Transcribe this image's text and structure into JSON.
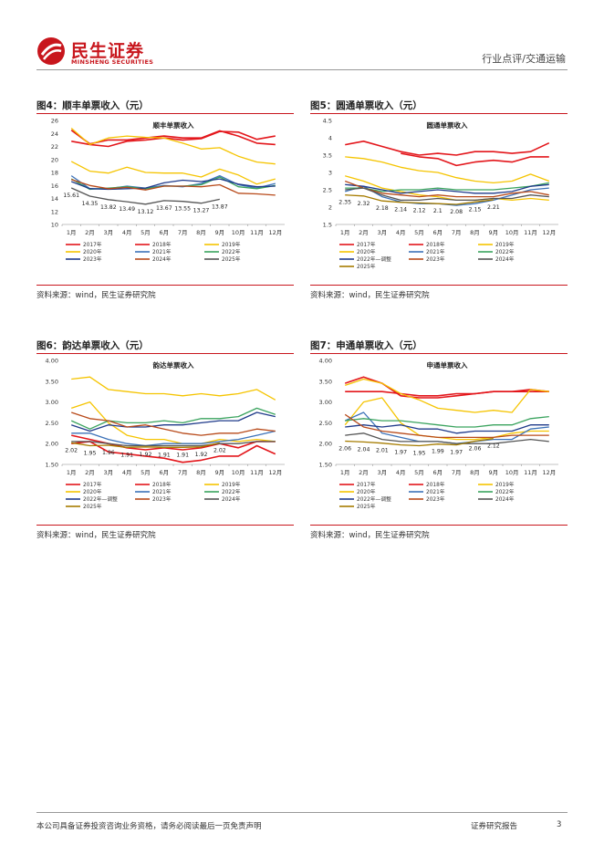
{
  "header": {
    "logo_cn": "民生证券",
    "logo_en": "MINSHENG SECURITIES",
    "category": "行业点评/交通运输"
  },
  "figures": [
    {
      "title": "图4：顺丰单票收入（元）",
      "source": "资料来源：wind，民生证券研究院",
      "chart_data": {
        "type": "line",
        "title": "顺丰单票收入",
        "categories": [
          "1月",
          "2月",
          "3月",
          "4月",
          "5月",
          "6月",
          "7月",
          "8月",
          "9月",
          "10月",
          "11月",
          "12月"
        ],
        "ylim": [
          10,
          26
        ],
        "yticks": [
          10,
          12,
          14,
          16,
          18,
          20,
          22,
          24,
          26
        ],
        "ytick_labels": [
          "10",
          "12",
          "14",
          "16",
          "18",
          "20",
          "22",
          "24",
          "26"
        ],
        "series": [
          {
            "name": "2017年",
            "color": "#e3161b",
            "values": [
              22.8,
              22.3,
              22.0,
              22.8,
              23.0,
              23.3,
              23.0,
              23.2,
              24.3,
              24.2,
              23.1,
              23.6
            ]
          },
          {
            "name": "2018年",
            "color": "#e3161b",
            "values": [
              24.5,
              22.4,
              23.0,
              23.0,
              23.3,
              23.6,
              23.3,
              23.3,
              24.4,
              23.6,
              22.5,
              22.3
            ]
          },
          {
            "name": "2019年",
            "color": "#f5c400",
            "values": [
              24.8,
              22.3,
              23.3,
              23.6,
              23.4,
              23.3,
              22.5,
              21.6,
              21.8,
              20.5,
              19.6,
              19.3
            ]
          },
          {
            "name": "2020年",
            "color": "#f5c400",
            "values": [
              19.7,
              18.2,
              17.9,
              18.8,
              18.0,
              17.9,
              17.9,
              17.3,
              18.5,
              17.6,
              16.2,
              17.0
            ]
          },
          {
            "name": "2021年",
            "color": "#3c72b8",
            "values": [
              17.5,
              15.5,
              15.5,
              15.9,
              15.6,
              16.0,
              15.8,
              16.3,
              17.5,
              16.1,
              15.6,
              16.3
            ]
          },
          {
            "name": "2022年",
            "color": "#3aa35e",
            "values": [
              17.0,
              15.4,
              15.6,
              15.8,
              15.5,
              15.9,
              15.9,
              16.1,
              17.3,
              15.8,
              15.5,
              16.0
            ]
          },
          {
            "name": "2023年",
            "color": "#1f3a8a",
            "values": [
              16.6,
              15.5,
              15.4,
              15.5,
              15.6,
              16.4,
              16.8,
              16.6,
              17.0,
              16.2,
              15.8,
              15.9
            ]
          },
          {
            "name": "2024年",
            "color": "#b84a1a",
            "values": [
              16.9,
              16.0,
              15.5,
              15.7,
              15.3,
              15.9,
              15.9,
              15.8,
              16.1,
              14.8,
              14.7,
              14.5
            ]
          },
          {
            "name": "2025年",
            "color": "#555555",
            "values": [
              15.61,
              14.35,
              13.82,
              13.49,
              13.12,
              13.67,
              13.55,
              13.27,
              13.87,
              null,
              null,
              null
            ]
          }
        ],
        "annotations": [
          "15.61",
          "14.35",
          "13.82",
          "13.49",
          "13.12",
          "13.67",
          "13.55",
          "13.27",
          "13.87"
        ],
        "legend_columns": 3
      }
    },
    {
      "title": "图5：圆通单票收入（元）",
      "source": "资料来源：wind，民生证券研究院",
      "chart_data": {
        "type": "line",
        "title": "圆通单票收入",
        "categories": [
          "1月",
          "2月",
          "3月",
          "4月",
          "5月",
          "6月",
          "7月",
          "8月",
          "9月",
          "10月",
          "11月",
          "12月"
        ],
        "ylim": [
          1.5,
          4.5
        ],
        "yticks": [
          1.5,
          2,
          2.5,
          3,
          3.5,
          4,
          4.5
        ],
        "ytick_labels": [
          "1.5",
          "2",
          "2.5",
          "3",
          "3.5",
          "4",
          "4.5"
        ],
        "series": [
          {
            "name": "2017年",
            "color": "#e3161b",
            "values": [
              3.8,
              3.9,
              3.75,
              3.6,
              3.5,
              3.55,
              3.5,
              3.6,
              3.6,
              3.55,
              3.6,
              3.85
            ]
          },
          {
            "name": "2018年",
            "color": "#e3161b",
            "values": [
              null,
              null,
              null,
              3.55,
              3.45,
              3.4,
              3.2,
              3.3,
              3.35,
              3.3,
              3.45,
              3.45
            ]
          },
          {
            "name": "2019年",
            "color": "#f5c400",
            "values": [
              3.45,
              3.4,
              3.3,
              3.15,
              3.05,
              3.0,
              2.85,
              2.75,
              2.7,
              2.75,
              2.95,
              2.75
            ]
          },
          {
            "name": "2020年",
            "color": "#f5c400",
            "values": [
              2.9,
              2.75,
              2.55,
              2.45,
              2.35,
              2.3,
              2.2,
              2.2,
              2.25,
              2.2,
              2.25,
              2.2
            ]
          },
          {
            "name": "2021年",
            "color": "#3c72b8",
            "values": [
              2.45,
              2.6,
              2.3,
              2.15,
              2.1,
              2.1,
              2.05,
              2.1,
              2.2,
              2.35,
              2.5,
              2.55
            ]
          },
          {
            "name": "2022年",
            "color": "#3aa35e",
            "values": [
              2.55,
              2.55,
              2.45,
              2.5,
              2.5,
              2.55,
              2.5,
              2.5,
              2.5,
              2.55,
              2.6,
              2.7
            ]
          },
          {
            "name": "2022年—调整",
            "color": "#1f3a8a",
            "values": [
              2.65,
              2.6,
              2.5,
              2.4,
              2.45,
              2.5,
              2.45,
              2.4,
              2.4,
              2.45,
              2.6,
              2.65
            ]
          },
          {
            "name": "2023年",
            "color": "#b84a1a",
            "values": [
              2.75,
              2.55,
              2.4,
              2.35,
              2.3,
              2.35,
              2.3,
              2.3,
              2.3,
              2.4,
              2.45,
              2.35
            ]
          },
          {
            "name": "2024年",
            "color": "#555555",
            "values": [
              2.5,
              2.55,
              2.35,
              2.2,
              2.2,
              2.25,
              2.2,
              2.2,
              2.25,
              2.25,
              2.35,
              2.3
            ]
          },
          {
            "name": "2025年",
            "color": "#a67c00",
            "values": [
              2.35,
              2.32,
              2.18,
              2.14,
              2.12,
              2.1,
              2.08,
              2.15,
              2.21,
              null,
              null,
              null
            ]
          }
        ],
        "annotations": [
          "2.35",
          "2.32",
          "2.18",
          "2.14",
          "2.12",
          "2.1",
          "2.08",
          "2.15",
          "2.21"
        ],
        "legend_columns": 3
      }
    },
    {
      "title": "图6：韵达单票收入（元）",
      "source": "资料来源：wind，民生证券研究院",
      "chart_data": {
        "type": "line",
        "title": "韵达单票收入",
        "categories": [
          "1月",
          "2月",
          "3月",
          "4月",
          "5月",
          "6月",
          "7月",
          "8月",
          "9月",
          "10月",
          "11月",
          "12月"
        ],
        "ylim": [
          1.5,
          4.0
        ],
        "yticks": [
          1.5,
          2.0,
          2.5,
          3.0,
          3.5,
          4.0
        ],
        "ytick_labels": [
          "1.50",
          "2.00",
          "2.50",
          "3.00",
          "3.50",
          "4.00"
        ],
        "series": [
          {
            "name": "2017年",
            "color": "#e3161b",
            "values": [
              2.0,
              2.05,
              1.8,
              1.75,
              1.7,
              1.65,
              1.55,
              1.6,
              1.7,
              1.7,
              1.95,
              1.75
            ]
          },
          {
            "name": "2018年",
            "color": "#e3161b",
            "values": [
              2.2,
              2.1,
              2.0,
              1.9,
              1.85,
              1.9,
              1.85,
              1.9,
              2.0,
              1.9,
              2.05,
              2.05
            ]
          },
          {
            "name": "2019年",
            "color": "#f5c400",
            "values": [
              3.55,
              3.6,
              3.3,
              3.25,
              3.2,
              3.2,
              3.15,
              3.2,
              3.15,
              3.2,
              3.3,
              3.05
            ]
          },
          {
            "name": "2020年",
            "color": "#f5c400",
            "values": [
              2.85,
              3.0,
              2.5,
              2.2,
              2.1,
              2.1,
              2.0,
              2.0,
              2.1,
              2.05,
              2.1,
              2.05
            ]
          },
          {
            "name": "2021年",
            "color": "#3c72b8",
            "values": [
              2.25,
              2.25,
              2.1,
              2.0,
              1.95,
              2.0,
              2.0,
              2.0,
              2.05,
              2.1,
              2.2,
              2.3
            ]
          },
          {
            "name": "2022年",
            "color": "#3aa35e",
            "values": [
              2.55,
              2.35,
              2.55,
              2.5,
              2.5,
              2.55,
              2.5,
              2.6,
              2.6,
              2.65,
              2.85,
              2.7
            ]
          },
          {
            "name": "2022年—调整",
            "color": "#1f3a8a",
            "values": [
              2.45,
              2.3,
              2.45,
              2.4,
              2.4,
              2.45,
              2.45,
              2.5,
              2.55,
              2.55,
              2.75,
              2.65
            ]
          },
          {
            "name": "2023年",
            "color": "#b84a1a",
            "values": [
              2.75,
              2.6,
              2.55,
              2.4,
              2.45,
              2.35,
              2.25,
              2.2,
              2.25,
              2.25,
              2.35,
              2.3
            ]
          },
          {
            "name": "2024年",
            "color": "#555555",
            "values": [
              2.05,
              2.05,
              2.0,
              1.95,
              1.95,
              1.95,
              1.95,
              1.95,
              2.0,
              2.0,
              2.05,
              2.05
            ]
          },
          {
            "name": "2025年",
            "color": "#a67c00",
            "values": [
              2.02,
              1.95,
              1.96,
              1.91,
              1.92,
              1.91,
              1.91,
              1.92,
              2.02,
              null,
              null,
              null
            ]
          }
        ],
        "annotations": [
          "2.02",
          "1.95",
          "1.96",
          "1.91",
          "1.92",
          "1.91",
          "1.91",
          "1.92",
          "2.02"
        ],
        "legend_columns": 3
      }
    },
    {
      "title": "图7：申通单票收入（元）",
      "source": "资料来源：wind，民生证券研究院",
      "chart_data": {
        "type": "line",
        "title": "申通单票收入",
        "categories": [
          "1月",
          "2月",
          "3月",
          "4月",
          "5月",
          "6月",
          "7月",
          "8月",
          "9月",
          "10月",
          "11月",
          "12月"
        ],
        "ylim": [
          1.5,
          4.0
        ],
        "yticks": [
          1.5,
          2.0,
          2.5,
          3.0,
          3.5,
          4.0
        ],
        "ytick_labels": [
          "1.50",
          "2.00",
          "2.50",
          "3.00",
          "3.50",
          "4.00"
        ],
        "series": [
          {
            "name": "2017年",
            "color": "#e3161b",
            "values": [
              3.45,
              3.6,
              3.45,
              3.15,
              3.1,
              3.1,
              3.15,
              3.2,
              3.25,
              3.25,
              3.3,
              3.25
            ]
          },
          {
            "name": "2018年",
            "color": "#e3161b",
            "values": [
              3.25,
              3.25,
              3.25,
              3.2,
              3.15,
              3.15,
              3.2,
              3.2,
              3.25,
              3.25,
              3.25,
              3.25
            ]
          },
          {
            "name": "2019年",
            "color": "#f5c400",
            "values": [
              3.4,
              3.55,
              3.45,
              3.2,
              3.05,
              2.85,
              2.8,
              2.75,
              2.8,
              2.75,
              3.3,
              3.25
            ]
          },
          {
            "name": "2020年",
            "color": "#f5c400",
            "values": [
              2.45,
              3.0,
              3.1,
              2.5,
              2.2,
              2.15,
              2.1,
              2.1,
              2.15,
              2.25,
              2.3,
              2.3
            ]
          },
          {
            "name": "2021年",
            "color": "#3c72b8",
            "values": [
              2.55,
              2.75,
              2.25,
              2.15,
              2.05,
              2.05,
              2.0,
              2.05,
              2.1,
              2.1,
              2.35,
              2.4
            ]
          },
          {
            "name": "2022年",
            "color": "#3aa35e",
            "values": [
              2.55,
              2.6,
              2.55,
              2.55,
              2.5,
              2.45,
              2.4,
              2.4,
              2.45,
              2.45,
              2.6,
              2.65
            ]
          },
          {
            "name": "2022年—调整",
            "color": "#1f3a8a",
            "values": [
              2.4,
              2.45,
              2.4,
              2.45,
              2.35,
              2.35,
              2.25,
              2.3,
              2.3,
              2.3,
              2.45,
              2.45
            ]
          },
          {
            "name": "2023年",
            "color": "#b84a1a",
            "values": [
              2.7,
              2.4,
              2.3,
              2.25,
              2.2,
              2.15,
              2.15,
              2.15,
              2.15,
              2.2,
              2.2,
              2.2
            ]
          },
          {
            "name": "2024年",
            "color": "#555555",
            "values": [
              2.2,
              2.25,
              2.1,
              2.05,
              2.05,
              2.05,
              2.0,
              2.0,
              2.0,
              2.05,
              2.1,
              2.05
            ]
          },
          {
            "name": "2025年",
            "color": "#a67c00",
            "values": [
              2.06,
              2.04,
              2.01,
              1.97,
              1.95,
              1.99,
              1.97,
              2.06,
              2.12,
              null,
              null,
              null
            ]
          }
        ],
        "annotations": [
          "2.06",
          "2.04",
          "2.01",
          "1.97",
          "1.95",
          "1.99",
          "1.97",
          "2.06",
          "2.12"
        ],
        "legend_columns": 3
      }
    }
  ],
  "footer": {
    "disclaimer": "本公司具备证券投资咨询业务资格，请务必阅读最后一页免责声明",
    "report_type": "证券研究报告",
    "page_number": "3"
  }
}
